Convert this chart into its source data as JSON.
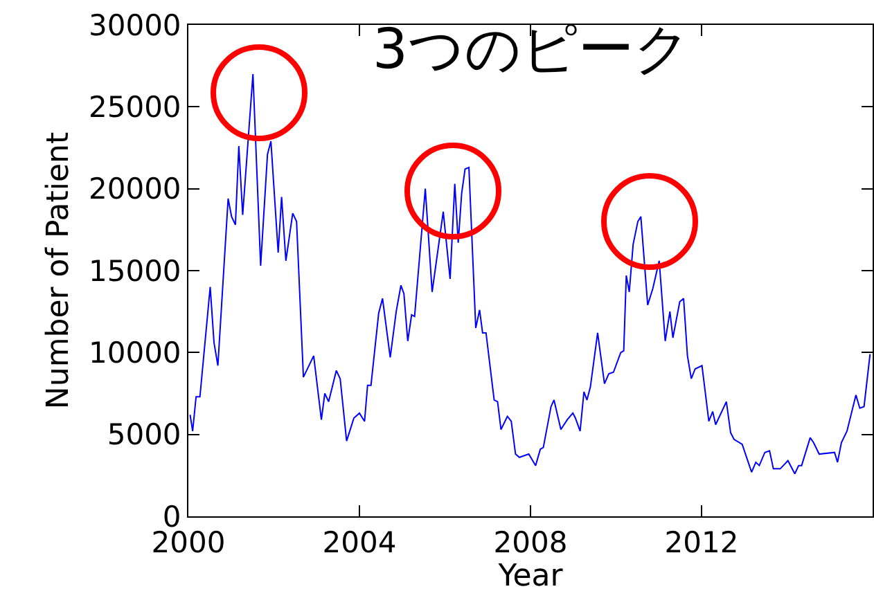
{
  "chart_data": {
    "type": "line",
    "xlabel": "Year",
    "ylabel": "Number of Patient",
    "annotations": [
      "3つのピーク"
    ],
    "x": [
      2000.04,
      2000.1,
      2000.18,
      2000.27,
      2000.51,
      2000.6,
      2000.69,
      2000.93,
      2001.01,
      2001.1,
      2001.18,
      2001.27,
      2001.51,
      2001.69,
      2001.85,
      2001.93,
      2002.1,
      2002.18,
      2002.28,
      2002.44,
      2002.53,
      2002.69,
      2002.93,
      2003.11,
      2003.19,
      2003.28,
      2003.46,
      2003.55,
      2003.7,
      2003.87,
      2004.0,
      2004.12,
      2004.19,
      2004.27,
      2004.45,
      2004.54,
      2004.72,
      2004.86,
      2004.97,
      2005.04,
      2005.13,
      2005.22,
      2005.29,
      2005.54,
      2005.7,
      2005.96,
      2006.12,
      2006.23,
      2006.31,
      2006.39,
      2006.47,
      2006.56,
      2006.72,
      2006.81,
      2006.88,
      2006.96,
      2007.15,
      2007.23,
      2007.31,
      2007.46,
      2007.55,
      2007.65,
      2007.74,
      2007.96,
      2008.12,
      2008.23,
      2008.3,
      2008.48,
      2008.55,
      2008.71,
      2008.86,
      2008.99,
      2009.05,
      2009.16,
      2009.25,
      2009.32,
      2009.4,
      2009.57,
      2009.73,
      2009.83,
      2009.94,
      2010.11,
      2010.18,
      2010.24,
      2010.31,
      2010.4,
      2010.51,
      2010.58,
      2010.74,
      2010.86,
      2011.01,
      2011.15,
      2011.26,
      2011.33,
      2011.49,
      2011.58,
      2011.67,
      2011.76,
      2011.85,
      2012.01,
      2012.17,
      2012.26,
      2012.33,
      2012.58,
      2012.68,
      2012.76,
      2012.95,
      2013.17,
      2013.27,
      2013.35,
      2013.48,
      2013.59,
      2013.68,
      2013.84,
      2014.02,
      2014.18,
      2014.27,
      2014.34,
      2014.54,
      2014.62,
      2014.75,
      2015.11,
      2015.18,
      2015.27,
      2015.4,
      2015.61,
      2015.7,
      2015.8,
      2015.94
    ],
    "series": [
      {
        "color": "#0000ff",
        "values": [
          6200,
          5200,
          7300,
          7300,
          14000,
          10600,
          9200,
          19400,
          18300,
          17800,
          22600,
          18400,
          27000,
          15300,
          22100,
          22900,
          16100,
          19500,
          15600,
          18500,
          18000,
          8500,
          9800,
          5900,
          7500,
          7000,
          8900,
          8400,
          4600,
          6000,
          6300,
          5800,
          8000,
          8000,
          12400,
          13300,
          9700,
          12500,
          14100,
          13600,
          10700,
          12300,
          12200,
          20000,
          13700,
          18600,
          14500,
          20300,
          16700,
          19700,
          21200,
          21300,
          11500,
          12600,
          11200,
          11200,
          7100,
          7000,
          5300,
          6100,
          5800,
          3800,
          3600,
          3800,
          3100,
          4100,
          4200,
          6700,
          7100,
          5300,
          5900,
          6300,
          6000,
          5200,
          7600,
          7100,
          7900,
          11200,
          8100,
          8700,
          8800,
          10000,
          10100,
          14700,
          13700,
          16600,
          18000,
          18300,
          12900,
          13900,
          15600,
          10700,
          12500,
          10900,
          13100,
          13300,
          9800,
          8400,
          9000,
          9200,
          5800,
          6400,
          5600,
          7000,
          5100,
          4700,
          4400,
          2700,
          3300,
          3100,
          3900,
          4000,
          2900,
          2900,
          3400,
          2600,
          3100,
          3100,
          4800,
          4500,
          3800,
          3900,
          3300,
          4500,
          5200,
          7400,
          6600,
          6700,
          9900
        ]
      }
    ],
    "xlim": [
      2000,
      2016
    ],
    "xticks": [
      2000,
      2004,
      2008,
      2012
    ],
    "ylim": [
      0,
      30000
    ],
    "yticks": [
      0,
      5000,
      10000,
      15000,
      20000,
      25000,
      30000
    ],
    "grid": false,
    "marker": "none",
    "line_style": "solid"
  }
}
